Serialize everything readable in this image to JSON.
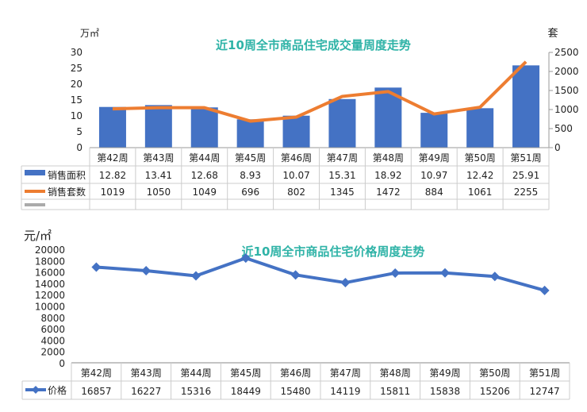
{
  "chart_data": [
    {
      "type": "bar+line",
      "title": "近10周全市商品住宅成交量周度走势",
      "ylabel_left": "万㎡",
      "ylabel_right": "套",
      "ylim_left": [
        0,
        30
      ],
      "ylim_right": [
        0,
        2500
      ],
      "yticks_left": [
        "0",
        "5",
        "10",
        "15",
        "20",
        "25",
        "30"
      ],
      "yticks_right": [
        "0",
        "500",
        "1000",
        "1500",
        "2000",
        "2500"
      ],
      "categories": [
        "第42周",
        "第43周",
        "第44周",
        "第45周",
        "第46周",
        "第47周",
        "第48周",
        "第49周",
        "第50周",
        "第51周"
      ],
      "series": [
        {
          "name": "销售面积",
          "type": "bar",
          "axis": "left",
          "color": "#4472c4",
          "values": [
            12.82,
            13.41,
            12.68,
            8.93,
            10.07,
            15.31,
            18.92,
            10.97,
            12.42,
            25.91
          ]
        },
        {
          "name": "销售套数",
          "type": "line",
          "axis": "right",
          "color": "#ed7d31",
          "values": [
            1019,
            1050,
            1049,
            696,
            802,
            1345,
            1472,
            884,
            1061,
            2255
          ]
        }
      ],
      "value_labels": {
        "bar": [
          "12.82",
          "13.41",
          "12.68",
          "8.93",
          "10.07",
          "15.31",
          "18.92",
          "10.97",
          "12.42",
          "25.91"
        ],
        "line": [
          "1019",
          "1050",
          "1049",
          "696",
          "802",
          "1345",
          "1472",
          "884",
          "1061",
          "2255"
        ]
      },
      "legend": "data-table"
    },
    {
      "type": "line",
      "title": "近10周全市商品住宅价格周度走势",
      "ylabel": "元/㎡",
      "ylim": [
        0,
        20000
      ],
      "yticks": [
        "0",
        "2000",
        "4000",
        "6000",
        "8000",
        "10000",
        "12000",
        "14000",
        "16000",
        "18000",
        "20000"
      ],
      "categories": [
        "第42周",
        "第43周",
        "第44周",
        "第45周",
        "第46周",
        "第47周",
        "第48周",
        "第49周",
        "第50周",
        "第51周"
      ],
      "series": [
        {
          "name": "价格",
          "color": "#4472c4",
          "values": [
            16857,
            16227,
            15316,
            18449,
            15480,
            14119,
            15811,
            15838,
            15206,
            12747
          ]
        }
      ],
      "value_labels": [
        "16857",
        "16227",
        "15316",
        "18449",
        "15480",
        "14119",
        "15811",
        "15838",
        "15206",
        "12747"
      ],
      "legend": "data-table"
    }
  ]
}
